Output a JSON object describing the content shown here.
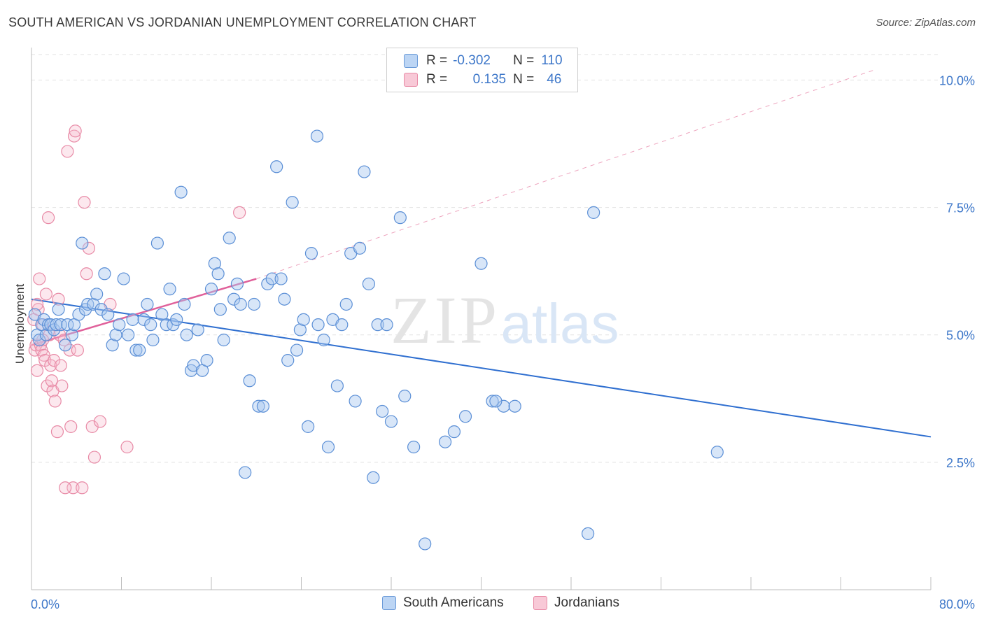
{
  "title": "SOUTH AMERICAN VS JORDANIAN UNEMPLOYMENT CORRELATION CHART",
  "source": "Source: ZipAtlas.com",
  "watermark": {
    "zip": "ZIP",
    "atlas": "atlas"
  },
  "legend_top": {
    "rows": [
      {
        "r_label": "R =",
        "r_value": "-0.302",
        "n_label": "N =",
        "n_value": "110"
      },
      {
        "r_label": "R =",
        "r_value": "0.135",
        "n_label": "N =",
        "n_value": "46"
      }
    ]
  },
  "legend_bottom": [
    "South Americans",
    "Jordanians"
  ],
  "colors": {
    "blue_fill": "#a9c8f0",
    "blue_stroke": "#5b8fd6",
    "blue_line": "#2f6fd0",
    "pink_fill": "#f6bccd",
    "pink_stroke": "#e88aa6",
    "pink_line": "#e0609a",
    "axis_text": "#3d77c9",
    "grid": "#e2e2e2"
  },
  "chart_data": {
    "type": "scatter",
    "title": "SOUTH AMERICAN VS JORDANIAN UNEMPLOYMENT CORRELATION CHART",
    "xlabel": "",
    "ylabel": "Unemployment",
    "xlim": [
      0,
      80
    ],
    "ylim": [
      0,
      10.5
    ],
    "x_tick_labels": [
      "0.0%",
      "80.0%"
    ],
    "y_ticks": [
      2.5,
      5.0,
      7.5,
      10.0
    ],
    "y_tick_labels": [
      "2.5%",
      "5.0%",
      "7.5%",
      "10.0%"
    ],
    "grid": true,
    "legend_position": "top-center",
    "series": [
      {
        "name": "South Americans",
        "r": -0.302,
        "n": 110,
        "trend": {
          "x": [
            0,
            80
          ],
          "y": [
            5.7,
            3.0
          ],
          "style": "solid"
        },
        "points": [
          [
            0.3,
            5.4
          ],
          [
            0.5,
            5.0
          ],
          [
            0.7,
            4.9
          ],
          [
            0.9,
            5.2
          ],
          [
            1.1,
            5.3
          ],
          [
            1.3,
            5.0
          ],
          [
            1.5,
            5.2
          ],
          [
            1.7,
            5.2
          ],
          [
            2.0,
            5.1
          ],
          [
            2.2,
            5.2
          ],
          [
            2.4,
            5.5
          ],
          [
            2.6,
            5.2
          ],
          [
            3.0,
            4.8
          ],
          [
            3.2,
            5.2
          ],
          [
            3.6,
            5.0
          ],
          [
            3.8,
            5.2
          ],
          [
            4.2,
            5.4
          ],
          [
            4.5,
            6.8
          ],
          [
            4.8,
            5.5
          ],
          [
            5.0,
            5.6
          ],
          [
            5.5,
            5.6
          ],
          [
            5.8,
            5.8
          ],
          [
            6.2,
            5.5
          ],
          [
            6.5,
            6.2
          ],
          [
            6.8,
            5.4
          ],
          [
            7.2,
            4.8
          ],
          [
            7.5,
            5.0
          ],
          [
            7.8,
            5.2
          ],
          [
            8.2,
            6.1
          ],
          [
            8.6,
            5.0
          ],
          [
            9.0,
            5.3
          ],
          [
            9.3,
            4.7
          ],
          [
            9.6,
            4.7
          ],
          [
            10.0,
            5.3
          ],
          [
            10.3,
            5.6
          ],
          [
            10.6,
            5.2
          ],
          [
            10.8,
            4.9
          ],
          [
            11.2,
            6.8
          ],
          [
            11.6,
            5.4
          ],
          [
            12.0,
            5.2
          ],
          [
            12.3,
            5.9
          ],
          [
            12.6,
            5.2
          ],
          [
            12.9,
            5.3
          ],
          [
            13.3,
            7.8
          ],
          [
            13.6,
            5.6
          ],
          [
            13.8,
            5.0
          ],
          [
            14.2,
            4.3
          ],
          [
            14.4,
            4.4
          ],
          [
            14.8,
            5.1
          ],
          [
            15.2,
            4.3
          ],
          [
            15.6,
            4.5
          ],
          [
            16.0,
            5.9
          ],
          [
            16.3,
            6.4
          ],
          [
            16.6,
            6.2
          ],
          [
            16.8,
            5.5
          ],
          [
            17.1,
            4.9
          ],
          [
            17.6,
            6.9
          ],
          [
            18.0,
            5.7
          ],
          [
            18.3,
            6.0
          ],
          [
            18.6,
            5.6
          ],
          [
            19.0,
            2.3
          ],
          [
            19.4,
            4.1
          ],
          [
            19.8,
            5.6
          ],
          [
            20.2,
            3.6
          ],
          [
            20.6,
            3.6
          ],
          [
            21.0,
            6.0
          ],
          [
            21.4,
            6.1
          ],
          [
            21.8,
            8.3
          ],
          [
            22.2,
            6.1
          ],
          [
            22.5,
            5.7
          ],
          [
            22.8,
            4.5
          ],
          [
            23.2,
            7.6
          ],
          [
            23.6,
            4.7
          ],
          [
            23.9,
            5.1
          ],
          [
            24.2,
            5.3
          ],
          [
            24.6,
            3.2
          ],
          [
            24.9,
            6.6
          ],
          [
            25.5,
            5.2
          ],
          [
            26.0,
            4.9
          ],
          [
            26.4,
            2.8
          ],
          [
            26.8,
            5.3
          ],
          [
            27.2,
            4.0
          ],
          [
            27.6,
            5.2
          ],
          [
            28.0,
            5.6
          ],
          [
            28.4,
            6.6
          ],
          [
            28.8,
            3.7
          ],
          [
            29.2,
            6.7
          ],
          [
            29.6,
            8.2
          ],
          [
            30.0,
            6.0
          ],
          [
            30.4,
            2.2
          ],
          [
            30.8,
            5.2
          ],
          [
            31.2,
            3.5
          ],
          [
            31.6,
            5.2
          ],
          [
            32.0,
            3.3
          ],
          [
            32.8,
            7.3
          ],
          [
            33.2,
            3.8
          ],
          [
            34.0,
            2.8
          ],
          [
            35.0,
            0.9
          ],
          [
            25.4,
            8.9
          ],
          [
            36.8,
            2.9
          ],
          [
            37.6,
            3.1
          ],
          [
            38.6,
            3.4
          ],
          [
            40.0,
            6.4
          ],
          [
            41.0,
            3.7
          ],
          [
            42.0,
            3.6
          ],
          [
            43.0,
            3.6
          ],
          [
            49.5,
            1.1
          ],
          [
            50.0,
            7.4
          ],
          [
            61.0,
            2.7
          ],
          [
            41.3,
            3.7
          ]
        ]
      },
      {
        "name": "Jordanians",
        "r": 0.135,
        "n": 46,
        "trend": {
          "x": [
            0,
            20
          ],
          "y": [
            4.8,
            6.1
          ],
          "style": "solid",
          "extended": {
            "x": [
              20,
              75
            ],
            "y": [
              6.1,
              10.2
            ],
            "style": "dashed"
          }
        },
        "points": [
          [
            0.2,
            5.3
          ],
          [
            0.3,
            4.7
          ],
          [
            0.4,
            4.8
          ],
          [
            0.5,
            4.3
          ],
          [
            0.6,
            5.5
          ],
          [
            0.7,
            6.1
          ],
          [
            0.8,
            4.8
          ],
          [
            0.9,
            4.7
          ],
          [
            1.0,
            5.2
          ],
          [
            1.1,
            4.6
          ],
          [
            1.2,
            4.5
          ],
          [
            1.3,
            5.8
          ],
          [
            1.4,
            4.0
          ],
          [
            1.5,
            7.3
          ],
          [
            1.6,
            5.0
          ],
          [
            1.7,
            4.4
          ],
          [
            1.8,
            4.1
          ],
          [
            1.9,
            3.9
          ],
          [
            2.0,
            4.5
          ],
          [
            2.1,
            3.7
          ],
          [
            2.3,
            3.1
          ],
          [
            2.4,
            5.7
          ],
          [
            2.5,
            5.0
          ],
          [
            2.6,
            4.4
          ],
          [
            2.7,
            4.0
          ],
          [
            2.9,
            4.9
          ],
          [
            3.2,
            8.6
          ],
          [
            3.4,
            4.7
          ],
          [
            3.5,
            3.2
          ],
          [
            3.7,
            2.0
          ],
          [
            3.8,
            8.9
          ],
          [
            3.9,
            9.0
          ],
          [
            4.1,
            4.7
          ],
          [
            4.5,
            2.0
          ],
          [
            4.7,
            7.6
          ],
          [
            4.9,
            6.2
          ],
          [
            5.1,
            6.7
          ],
          [
            5.4,
            3.2
          ],
          [
            5.6,
            2.6
          ],
          [
            6.1,
            3.3
          ],
          [
            7.0,
            5.6
          ],
          [
            8.5,
            2.8
          ],
          [
            18.5,
            7.4
          ],
          [
            3.0,
            2.0
          ],
          [
            0.5,
            5.6
          ],
          [
            1.0,
            4.9
          ]
        ]
      }
    ]
  }
}
